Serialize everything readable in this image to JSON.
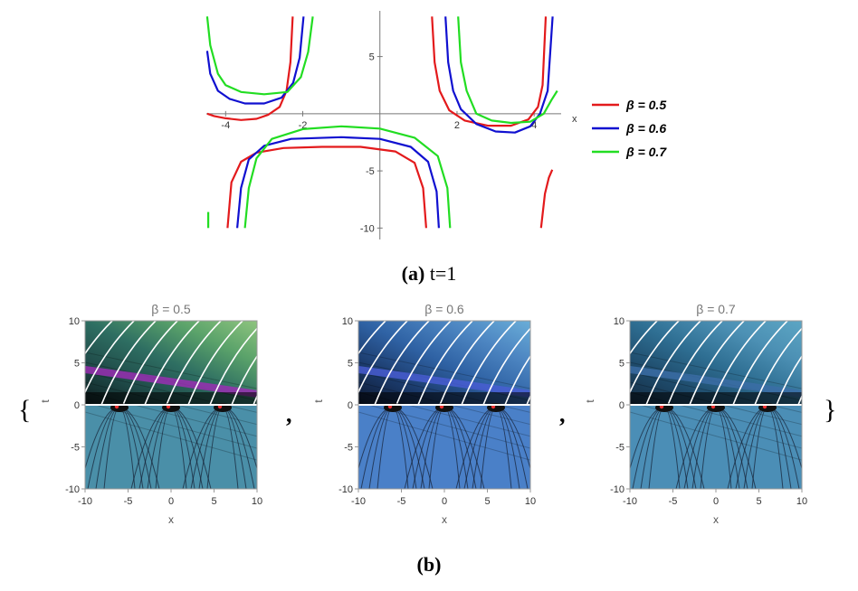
{
  "chart_data": [
    {
      "type": "line",
      "panel": "a",
      "caption_label": "(a)",
      "caption_text": " t=1",
      "xlabel": "x",
      "ylabel": "",
      "xlim": [
        -4.5,
        4.7
      ],
      "ylim": [
        -11,
        9
      ],
      "xticks": [
        -4,
        -2,
        2,
        4
      ],
      "yticks": [
        5,
        -5,
        -10
      ],
      "xtick_labels": [
        "-4",
        "-2",
        "2",
        "4"
      ],
      "ytick_labels": [
        "5",
        "-5",
        "-10"
      ],
      "legend": {
        "position": "right",
        "entries": [
          {
            "name": "β = 0.5",
            "color": "#e31a1c"
          },
          {
            "name": "β = 0.6",
            "color": "#1010d0"
          },
          {
            "name": "β = 0.7",
            "color": "#22dd22"
          }
        ]
      },
      "series": [
        {
          "name": "β = 0.5",
          "color": "#e31a1c",
          "points": [
            [
              [
                -4.48,
                0.0
              ],
              [
                -4.3,
                -0.2
              ],
              [
                -4.0,
                -0.4
              ],
              [
                -3.6,
                -0.55
              ],
              [
                -3.2,
                -0.45
              ],
              [
                -2.9,
                -0.1
              ],
              [
                -2.6,
                0.6
              ],
              [
                -2.42,
                2.0
              ],
              [
                -2.32,
                4.5
              ],
              [
                -2.26,
                8.5
              ]
            ],
            [
              [
                -3.95,
                -10.0
              ],
              [
                -3.85,
                -6.0
              ],
              [
                -3.6,
                -4.2
              ],
              [
                -3.2,
                -3.4
              ],
              [
                -2.5,
                -3.0
              ],
              [
                -1.5,
                -2.9
              ],
              [
                -0.5,
                -2.9
              ],
              [
                0.4,
                -3.3
              ],
              [
                0.9,
                -4.3
              ],
              [
                1.12,
                -6.5
              ],
              [
                1.2,
                -10.0
              ]
            ],
            [
              [
                1.35,
                8.5
              ],
              [
                1.42,
                4.5
              ],
              [
                1.55,
                2.0
              ],
              [
                1.8,
                0.3
              ],
              [
                2.2,
                -0.6
              ],
              [
                2.8,
                -1.05
              ],
              [
                3.4,
                -1.05
              ],
              [
                3.85,
                -0.5
              ],
              [
                4.1,
                0.6
              ],
              [
                4.22,
                2.5
              ],
              [
                4.3,
                8.5
              ]
            ],
            [
              [
                4.18,
                -10.0
              ],
              [
                4.28,
                -7.0
              ],
              [
                4.38,
                -5.6
              ],
              [
                4.47,
                -4.9
              ]
            ]
          ]
        },
        {
          "name": "β = 0.6",
          "color": "#1010d0",
          "points": [
            [
              [
                -4.48,
                5.5
              ],
              [
                -4.4,
                3.5
              ],
              [
                -4.2,
                2.0
              ],
              [
                -3.9,
                1.3
              ],
              [
                -3.5,
                0.9
              ],
              [
                -3.0,
                0.9
              ],
              [
                -2.55,
                1.4
              ],
              [
                -2.25,
                2.7
              ],
              [
                -2.08,
                4.9
              ],
              [
                -1.98,
                8.5
              ]
            ],
            [
              [
                -3.7,
                -10.0
              ],
              [
                -3.6,
                -6.5
              ],
              [
                -3.4,
                -4.0
              ],
              [
                -3.0,
                -2.8
              ],
              [
                -2.3,
                -2.2
              ],
              [
                -1.0,
                -2.05
              ],
              [
                0.0,
                -2.2
              ],
              [
                0.8,
                -2.9
              ],
              [
                1.25,
                -4.2
              ],
              [
                1.47,
                -6.8
              ],
              [
                1.53,
                -10.0
              ]
            ],
            [
              [
                1.7,
                8.5
              ],
              [
                1.77,
                4.5
              ],
              [
                1.9,
                2.0
              ],
              [
                2.1,
                0.4
              ],
              [
                2.5,
                -0.9
              ],
              [
                3.0,
                -1.55
              ],
              [
                3.5,
                -1.65
              ],
              [
                3.9,
                -1.1
              ],
              [
                4.15,
                0.0
              ],
              [
                4.35,
                2.0
              ],
              [
                4.48,
                8.5
              ]
            ]
          ]
        },
        {
          "name": "β = 0.7",
          "color": "#22dd22",
          "points": [
            [
              [
                -4.48,
                8.5
              ],
              [
                -4.4,
                6.0
              ],
              [
                -4.2,
                3.5
              ],
              [
                -4.0,
                2.5
              ],
              [
                -3.6,
                1.9
              ],
              [
                -3.0,
                1.7
              ],
              [
                -2.4,
                1.9
              ],
              [
                -2.05,
                3.2
              ],
              [
                -1.86,
                5.4
              ],
              [
                -1.74,
                8.5
              ]
            ],
            [
              [
                -4.45,
                -10.0
              ],
              [
                -4.45,
                -8.6
              ]
            ],
            [
              [
                -3.5,
                -10.0
              ],
              [
                -3.4,
                -6.5
              ],
              [
                -3.2,
                -3.9
              ],
              [
                -2.8,
                -2.2
              ],
              [
                -2.0,
                -1.35
              ],
              [
                -1.0,
                -1.1
              ],
              [
                0.0,
                -1.3
              ],
              [
                0.9,
                -2.1
              ],
              [
                1.5,
                -3.7
              ],
              [
                1.75,
                -6.5
              ],
              [
                1.82,
                -10.0
              ]
            ],
            [
              [
                2.03,
                8.5
              ],
              [
                2.1,
                4.5
              ],
              [
                2.25,
                2.0
              ],
              [
                2.5,
                0.0
              ],
              [
                2.9,
                -0.6
              ],
              [
                3.4,
                -0.8
              ],
              [
                3.9,
                -0.7
              ],
              [
                4.25,
                0.0
              ],
              [
                4.45,
                1.2
              ],
              [
                4.6,
                2.0
              ]
            ]
          ]
        }
      ]
    },
    {
      "type": "contour",
      "panel": "b",
      "caption_label": "(b)",
      "open_brace": "{",
      "close_brace": "}",
      "separator": ",",
      "xlabel": "x",
      "ylabel": "t",
      "xlim": [
        -10,
        10
      ],
      "ylim": [
        -10,
        10
      ],
      "xtick_labels": [
        "-10",
        "-5",
        "0",
        "5",
        "10"
      ],
      "ytick_labels": [
        "10",
        "5",
        "0",
        "-5",
        "-10"
      ],
      "panels": [
        {
          "title": "β = 0.5",
          "beta": 0.5,
          "upper_gradient": [
            "#0e1e20",
            "#1f4a48",
            "#2e6e62",
            "#5aa26a",
            "#8ec47e"
          ],
          "band_color": "#a02cb8",
          "lower_color": "#4a8fa8"
        },
        {
          "title": "β = 0.6",
          "beta": 0.6,
          "upper_gradient": [
            "#0d1830",
            "#1b3a6a",
            "#2f62a4",
            "#4d86c2",
            "#6aaed8"
          ],
          "band_color": "#4a5ed6",
          "lower_color": "#4a80c8"
        },
        {
          "title": "β = 0.7",
          "beta": 0.7,
          "upper_gradient": [
            "#142a40",
            "#1e4a6a",
            "#2e6e92",
            "#4c90b4",
            "#5ca6c4"
          ],
          "band_color": "#3c6ea8",
          "lower_color": "#4b8eb6"
        }
      ]
    }
  ]
}
